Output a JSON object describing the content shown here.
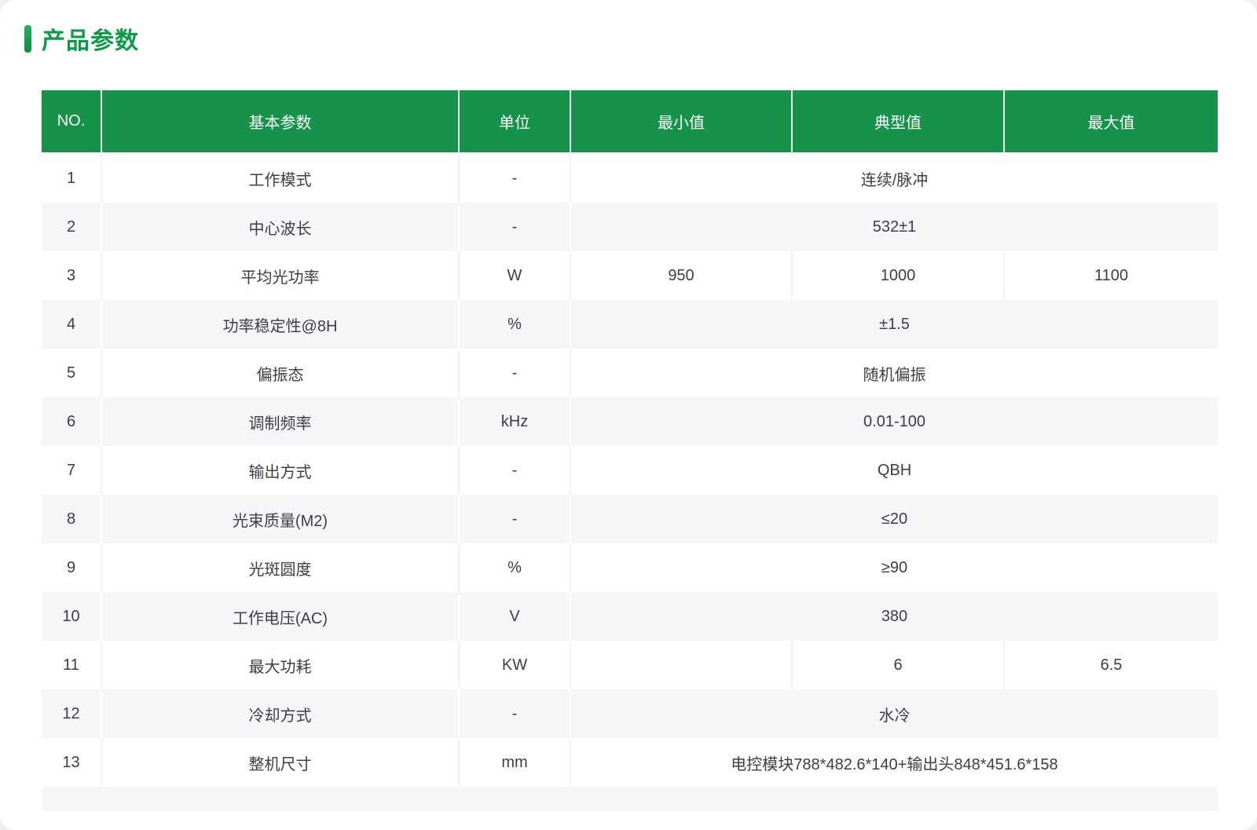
{
  "page": {
    "title": "产品参数"
  },
  "table": {
    "columns": [
      "NO.",
      "基本参数",
      "单位",
      "最小值",
      "典型值",
      "最大值"
    ],
    "rows": [
      {
        "no": "1",
        "param": "工作模式",
        "unit": "-",
        "merged": true,
        "value": "连续/脉冲"
      },
      {
        "no": "2",
        "param": "中心波长",
        "unit": "-",
        "merged": true,
        "value": "532±1"
      },
      {
        "no": "3",
        "param": "平均光功率",
        "unit": "W",
        "merged": false,
        "min": "950",
        "typical": "1000",
        "max": "1100"
      },
      {
        "no": "4",
        "param": "功率稳定性@8H",
        "unit": "%",
        "merged": true,
        "value": "±1.5"
      },
      {
        "no": "5",
        "param": "偏振态",
        "unit": "-",
        "merged": true,
        "value": "随机偏振"
      },
      {
        "no": "6",
        "param": "调制频率",
        "unit": "kHz",
        "merged": true,
        "value": "0.01-100"
      },
      {
        "no": "7",
        "param": "输出方式",
        "unit": "-",
        "merged": true,
        "value": "QBH"
      },
      {
        "no": "8",
        "param": "光束质量(M2)",
        "unit": "-",
        "merged": true,
        "value": "≤20"
      },
      {
        "no": "9",
        "param": "光斑圆度",
        "unit": "%",
        "merged": true,
        "value": "≥90"
      },
      {
        "no": "10",
        "param": "工作电压(AC)",
        "unit": "V",
        "merged": true,
        "value": "380"
      },
      {
        "no": "11",
        "param": "最大功耗",
        "unit": "KW",
        "merged": false,
        "min": "",
        "typical": "6",
        "max": "6.5"
      },
      {
        "no": "12",
        "param": "冷却方式",
        "unit": "-",
        "merged": true,
        "value": "水冷"
      },
      {
        "no": "13",
        "param": "整机尺寸",
        "unit": "mm",
        "merged": true,
        "value": "电控模块788*482.6*140+输出头848*451.6*158"
      }
    ]
  },
  "colors": {
    "header_green": "#16924a",
    "title_green": "#0f9a48",
    "row_alt_bg": "#f5f6f8",
    "body_text": "#3b3e42"
  }
}
